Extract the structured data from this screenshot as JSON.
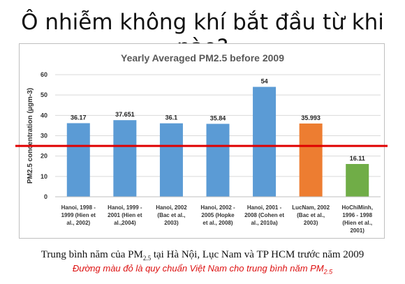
{
  "slide": {
    "title": "Ô nhiễm không khí bắt đầu từ khi nào?",
    "caption_pre": "Trung bình năm của PM",
    "caption_sub": "2.5",
    "caption_post": " tại Hà Nội, Lục Nam và TP HCM trước năm 2009",
    "note_pre": "Đường màu đỏ là quy chuẩn Việt Nam cho trung bình năm PM",
    "note_sub": "2.5"
  },
  "chart_data": {
    "type": "bar",
    "title": "Yearly Averaged PM2.5 before 2009",
    "ylabel": "PM2.5 concentration (μgm-3)",
    "xlabel": "",
    "ylim": [
      0,
      60
    ],
    "yticks": [
      0,
      10,
      20,
      30,
      40,
      50,
      60
    ],
    "grid": true,
    "categories": [
      [
        "Hanoi, 1998 -",
        "1999 (Hien et",
        "al., 2002)"
      ],
      [
        "Hanoi, 1999 -",
        "2001 (Hien et",
        "al.,2004)"
      ],
      [
        "Hanoi, 2002",
        "(Bac et al.,",
        "2003)"
      ],
      [
        "Hanoi, 2002 -",
        "2005 (Hopke",
        "et al., 2008)"
      ],
      [
        "Hanoi, 2001 -",
        "2008 (Cohen et",
        "al., 2010a)"
      ],
      [
        "LucNam, 2002",
        "(Bac et al.,",
        "2003)"
      ],
      [
        "HoChiMinh,",
        "1996 - 1998",
        "(Hien et al.,",
        "2001)"
      ]
    ],
    "values": [
      36.17,
      37.651,
      36.1,
      35.84,
      54,
      35.993,
      16.11
    ],
    "value_labels": [
      "36.17",
      "37.651",
      "36.1",
      "35.84",
      "54",
      "35.993",
      "16.11"
    ],
    "colors": [
      "#5b9bd5",
      "#5b9bd5",
      "#5b9bd5",
      "#5b9bd5",
      "#5b9bd5",
      "#ed7d31",
      "#70ad47"
    ],
    "threshold": 25,
    "threshold_color": "#e00000"
  }
}
